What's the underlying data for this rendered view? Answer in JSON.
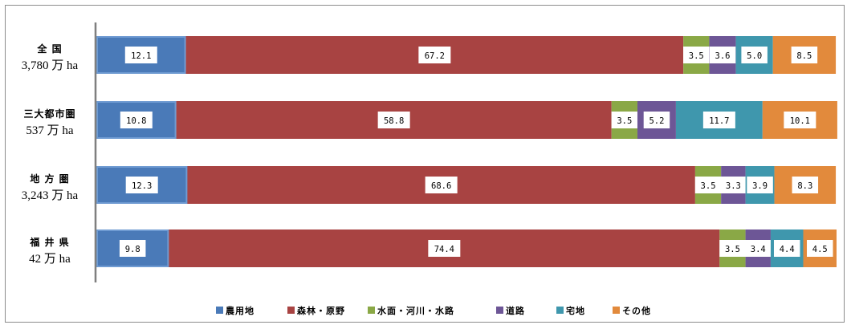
{
  "chart_data": {
    "type": "bar",
    "orientation": "horizontal",
    "stacked": true,
    "percent": true,
    "legend_position": "bottom",
    "categories": [
      {
        "name": "全 国",
        "area": "3,780 万 ha"
      },
      {
        "name": "三大都市圏",
        "area": "537 万 ha"
      },
      {
        "name": "地 方 圏",
        "area": "3,243 万 ha"
      },
      {
        "name": "福 井 県",
        "area": "42 万 ha"
      }
    ],
    "series": [
      {
        "name": "農用地",
        "color": "#4a7ab8",
        "values": [
          12.1,
          10.8,
          12.3,
          9.8
        ]
      },
      {
        "name": "森林・原野",
        "color": "#a84342",
        "values": [
          67.2,
          58.8,
          68.6,
          74.4
        ]
      },
      {
        "name": "水面・河川・水路",
        "color": "#8aa846",
        "values": [
          3.5,
          3.5,
          3.5,
          3.5
        ]
      },
      {
        "name": "道路",
        "color": "#6d5696",
        "values": [
          3.6,
          5.2,
          3.3,
          3.4
        ]
      },
      {
        "name": "宅地",
        "color": "#3f97ad",
        "values": [
          5.0,
          11.7,
          3.9,
          4.4
        ]
      },
      {
        "name": "その他",
        "color": "#e28a3c",
        "values": [
          8.5,
          10.1,
          8.3,
          4.5
        ]
      }
    ]
  }
}
